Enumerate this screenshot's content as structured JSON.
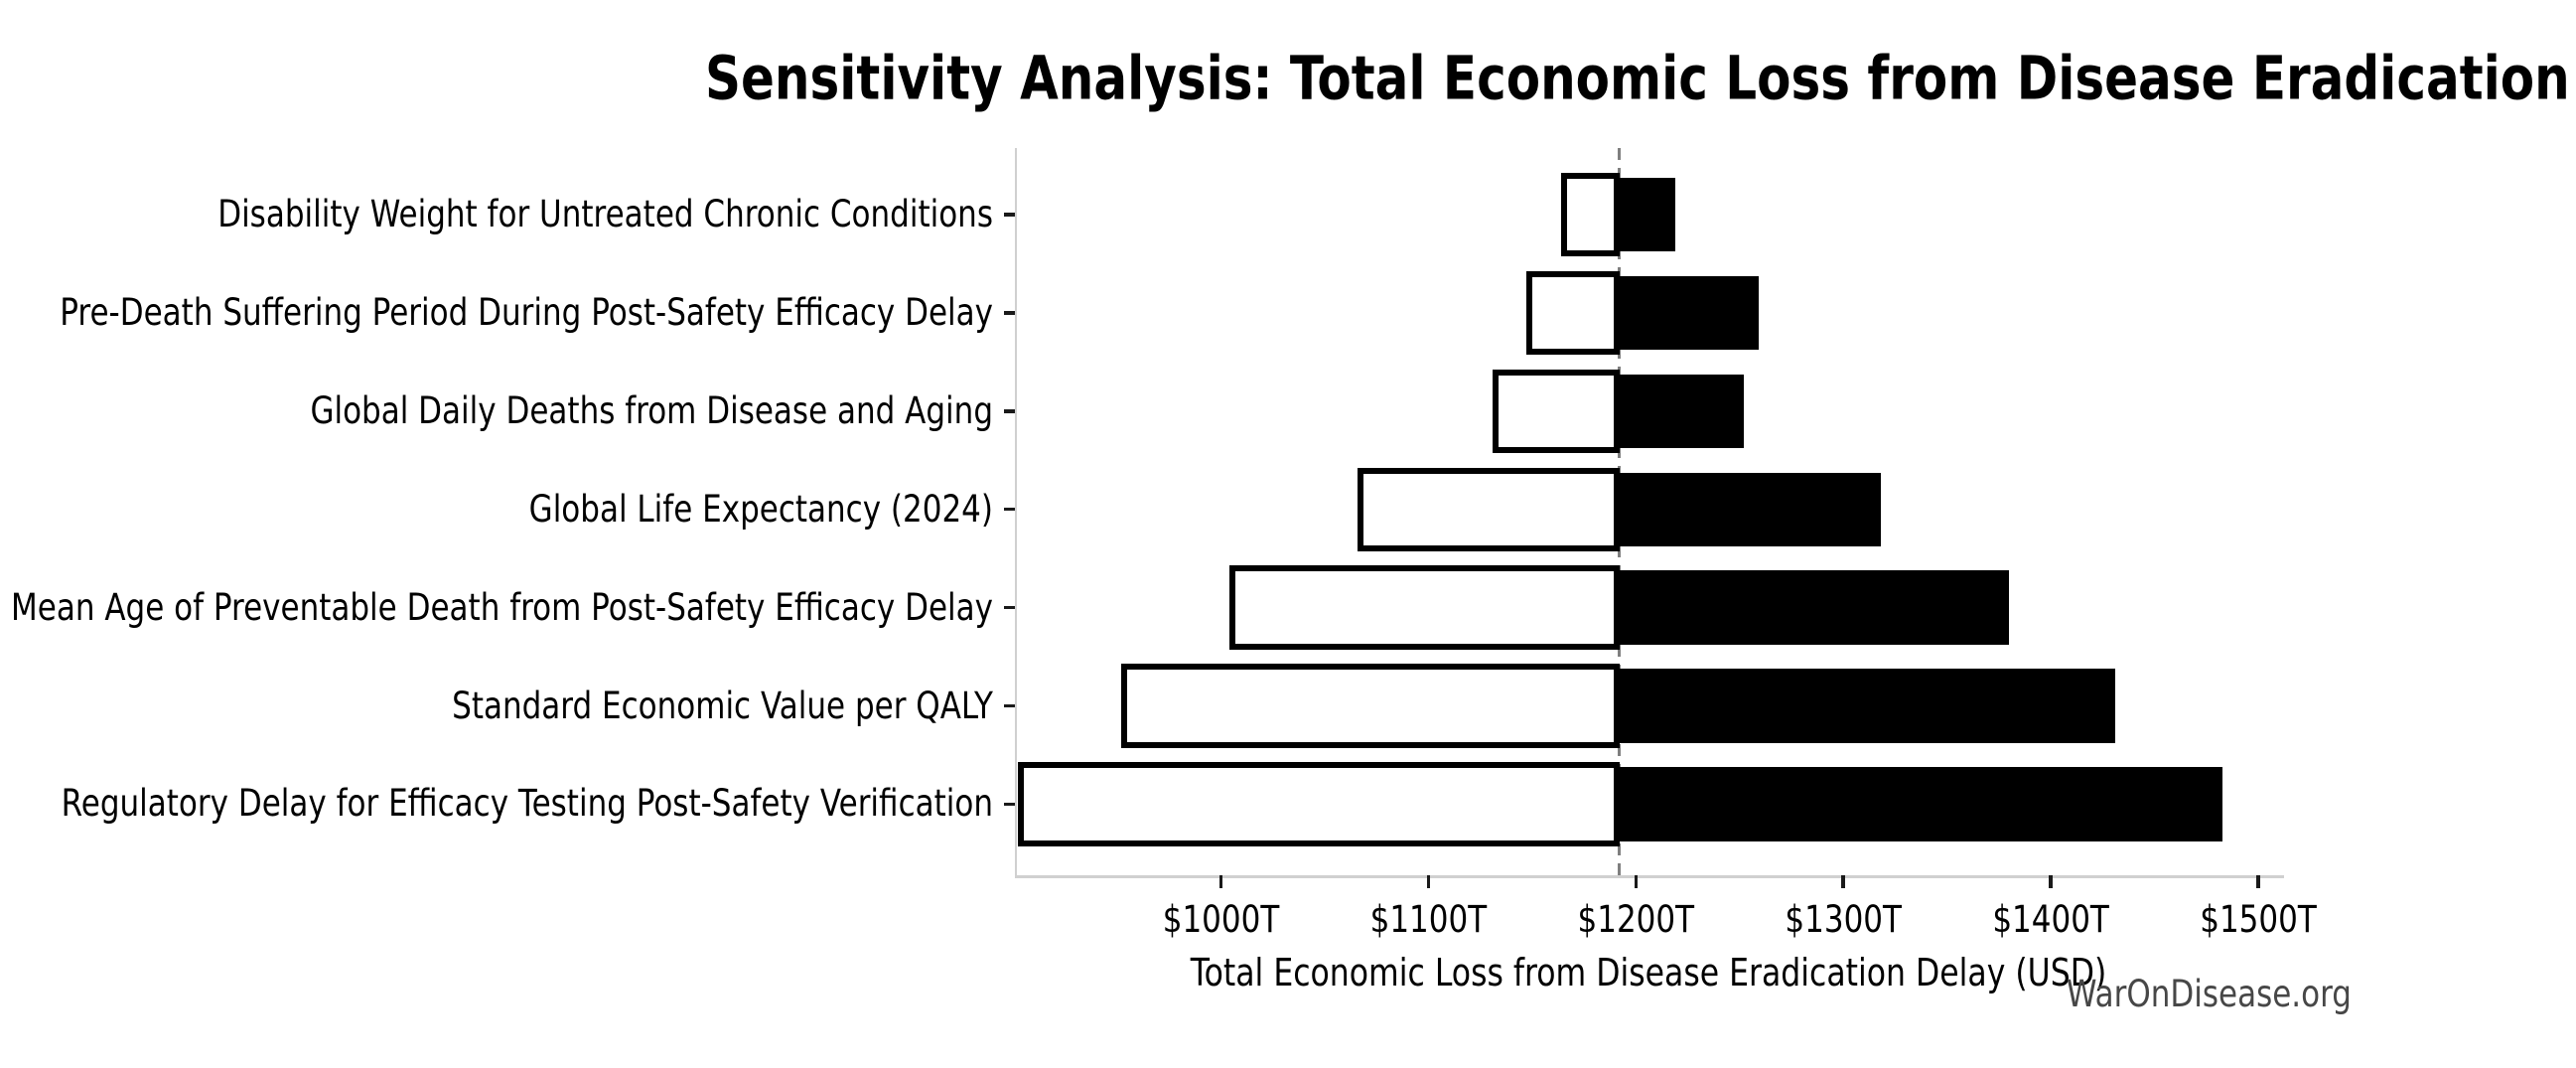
{
  "chart_data": {
    "type": "bar",
    "variant": "tornado-sensitivity",
    "orientation": "horizontal",
    "title": "Sensitivity Analysis: Total Economic Loss from Disease Eradication Delay",
    "xlabel": "Total Economic Loss from Disease Eradication Delay (USD)",
    "ylabel": "",
    "watermark": "WarOnDisease.org",
    "baseline_value": 1192,
    "xlim": [
      901,
      1512
    ],
    "xticks": [
      1000,
      1100,
      1200,
      1300,
      1400,
      1500
    ],
    "xtick_labels": [
      "$1000T",
      "$1100T",
      "$1200T",
      "$1300T",
      "$1400T",
      "$1500T"
    ],
    "grid": false,
    "legend": null,
    "bars": [
      {
        "label": "Disability Weight for Untreated Chronic Conditions",
        "low": 1164,
        "high": 1219
      },
      {
        "label": "Pre-Death Suffering Period During Post-Safety Efficacy Delay",
        "low": 1147,
        "high": 1259
      },
      {
        "label": "Global Daily Deaths from Disease and Aging",
        "low": 1131,
        "high": 1252
      },
      {
        "label": "Global Life Expectancy (2024)",
        "low": 1066,
        "high": 1318
      },
      {
        "label": "Mean Age of Preventable Death from Post-Safety Efficacy Delay",
        "low": 1004,
        "high": 1380
      },
      {
        "label": "Standard Economic Value per QALY",
        "low": 952,
        "high": 1431
      },
      {
        "label": "Regulatory Delay for Efficacy Testing Post-Safety Verification",
        "low": 902,
        "high": 1483
      }
    ],
    "colors": {
      "low_fill": "#ffffff",
      "high_fill": "#000000",
      "bar_edge": "#000000",
      "baseline_line": "#7f7f7f",
      "spine": "#d0d0d0",
      "tick": "#1a1a1a",
      "text": "#000000",
      "watermark": "#474747",
      "background": "#ffffff"
    }
  }
}
